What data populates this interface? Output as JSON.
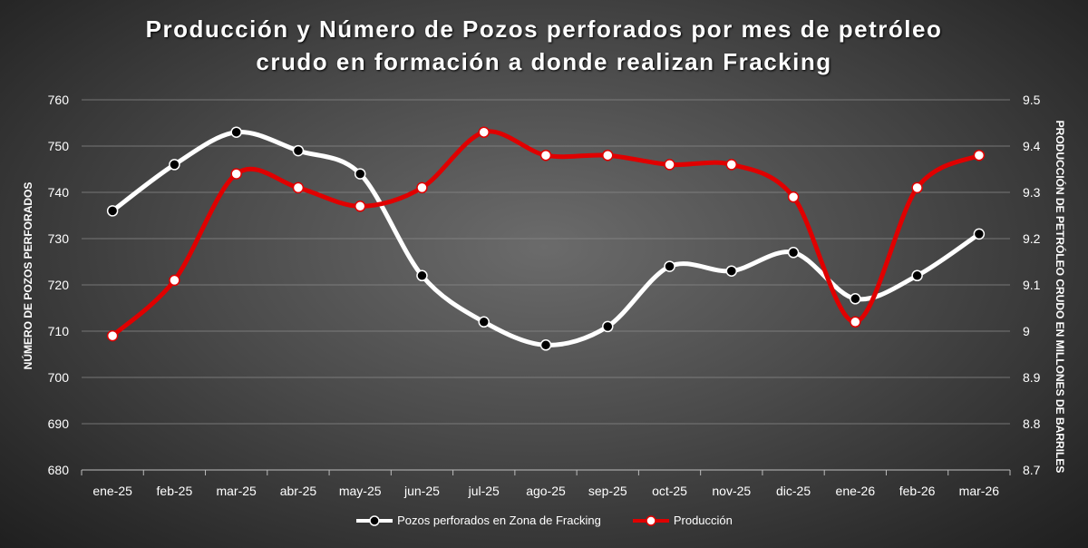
{
  "chart_data": {
    "type": "line",
    "title_line1": "Producción y Número de Pozos perforados por mes de petróleo",
    "title_line2": "crudo en formación a donde realizan Fracking",
    "ylabel_left": "NÚMERO DE POZOS PERFORADOS",
    "ylabel_right": "PRODUCCIÓN DE PETRÓLEO CRUDO EN MILLONES DE BARRILES",
    "categories": [
      "ene-25",
      "feb-25",
      "mar-25",
      "abr-25",
      "may-25",
      "jun-25",
      "jul-25",
      "ago-25",
      "sep-25",
      "oct-25",
      "nov-25",
      "dic-25",
      "ene-26",
      "feb-26",
      "mar-26"
    ],
    "ylim_left": [
      680,
      760
    ],
    "yticks_left": [
      "680",
      "690",
      "700",
      "710",
      "720",
      "730",
      "740",
      "750",
      "760"
    ],
    "ylim_right": [
      8.7,
      9.5
    ],
    "yticks_right": [
      "8.7",
      "8.8",
      "8.9",
      "9",
      "9.1",
      "9.2",
      "9.3",
      "9.4",
      "9.5"
    ],
    "legend_position": "bottom",
    "series": [
      {
        "name": "Pozos perforados en Zona de Fracking",
        "axis": "left",
        "color": "#ffffff",
        "marker_color": "#000000",
        "values": [
          736,
          746,
          753,
          749,
          744,
          722,
          712,
          707,
          711,
          724,
          723,
          727,
          717,
          722,
          731
        ]
      },
      {
        "name": "Producción",
        "axis": "right",
        "color": "#e00000",
        "marker_color": "#ffffff",
        "values": [
          8.99,
          9.11,
          9.34,
          9.31,
          9.27,
          9.31,
          9.43,
          9.38,
          9.38,
          9.36,
          9.36,
          9.29,
          9.02,
          9.31,
          9.38
        ]
      }
    ]
  }
}
